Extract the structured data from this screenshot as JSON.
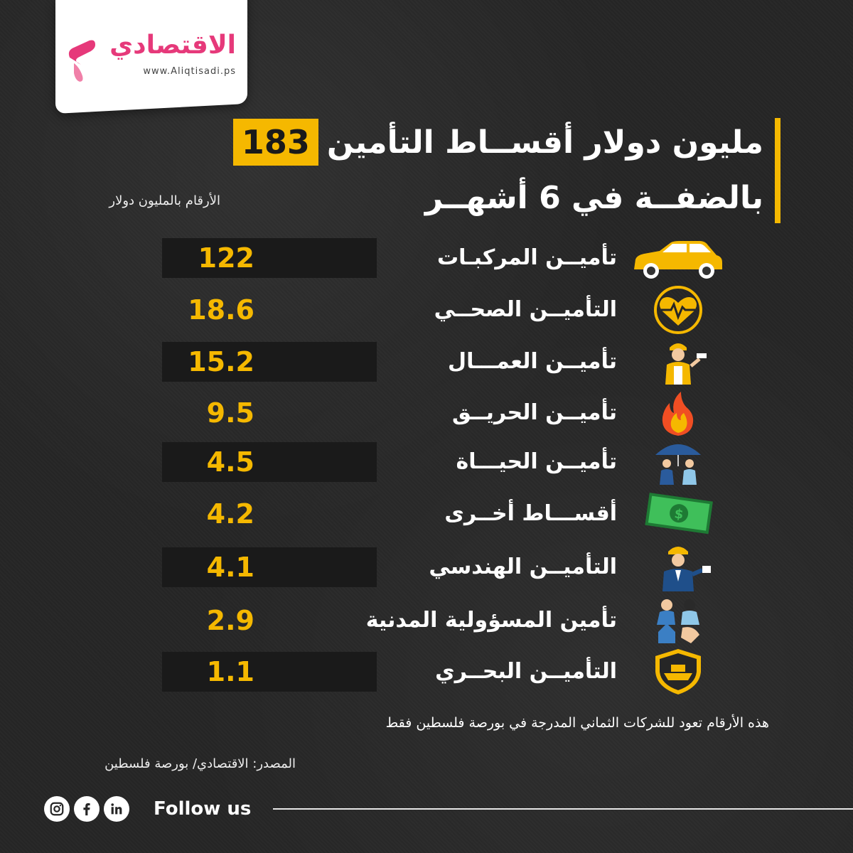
{
  "brand": {
    "name": "الاقتصادي",
    "url": "www.Aliqtisadi.ps",
    "accent": "#e6397a"
  },
  "title": {
    "number": "183",
    "line1": "مليون دولار أقســاط التأمين",
    "line2": "بالضفــة في 6 أشهــر"
  },
  "units_note": "الأرقام بالمليون دولار",
  "chart_data": {
    "type": "table",
    "categories": [
      "تأميــن المركبـات",
      "التأميــن الصحــي",
      "تأميــن العمـــال",
      "تأميــن الحريــق",
      "تأميــن الحيـــاة",
      "أقســـاط أخــرى",
      "التأميــن الهندسي",
      "تأمين المسؤولية المدنية",
      "التأميــن البحــري"
    ],
    "values": [
      122,
      18.6,
      15.2,
      9.5,
      4.5,
      4.2,
      4.1,
      2.9,
      1.1
    ],
    "value_labels": [
      "122",
      "18.6",
      "15.2",
      "9.5",
      "4.5",
      "4.2",
      "4.1",
      "2.9",
      "1.1"
    ],
    "icons": [
      "car-icon",
      "heart-pulse-icon",
      "worker-icon",
      "fire-icon",
      "umbrella-family-icon",
      "money-icon",
      "engineer-icon",
      "liability-icon",
      "ship-shield-icon"
    ],
    "value_color": "#f5b800",
    "accent_color": "#f5b800"
  },
  "disclaimer": "هذه الأرقام تعود للشركات الثماني المدرجة في بورصة فلسطين فقط",
  "source": "المصدر: الاقتصادي/ بورصة فلسطين",
  "footer": {
    "follow_label": "Follow us",
    "social_icons": [
      "instagram-icon",
      "facebook-icon",
      "linkedin-icon"
    ]
  }
}
